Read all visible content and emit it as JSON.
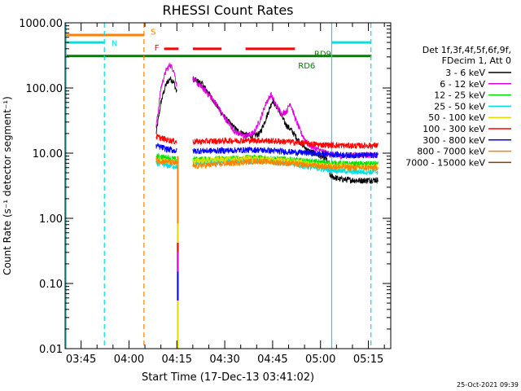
{
  "chart_data": {
    "type": "line",
    "title": "RHESSI Count Rates",
    "xlabel": "Start Time (17-Dec-13 03:41:02)",
    "ylabel": "Count Rate (s⁻¹ detector segment⁻¹)",
    "y_scale": "log",
    "ylim": [
      0.01,
      1000
    ],
    "y_ticks": [
      "0.01",
      "0.10",
      "1.00",
      "10.00",
      "100.00",
      "1000.00"
    ],
    "x_range_minutes_of_day": [
      220,
      322
    ],
    "x_ticks": [
      {
        "label": "03:45",
        "t": 225
      },
      {
        "label": "04:00",
        "t": 240
      },
      {
        "label": "04:15",
        "t": 255
      },
      {
        "label": "04:30",
        "t": 270
      },
      {
        "label": "04:45",
        "t": 285
      },
      {
        "label": "05:00",
        "t": 300
      },
      {
        "label": "05:15",
        "t": 315
      }
    ],
    "legend": {
      "placement": "right",
      "header": [
        "Det 1f,3f,4f,5f,6f,9f,",
        "FDecim 1, Att 0"
      ],
      "entries": [
        {
          "name": "3 - 6 keV",
          "color": "#000000"
        },
        {
          "name": "6 - 12 keV",
          "color": "#e000e0"
        },
        {
          "name": "12 - 25 keV",
          "color": "#00e000"
        },
        {
          "name": "25 - 50 keV",
          "color": "#00e0e0"
        },
        {
          "name": "50 - 100 keV",
          "color": "#e0e000"
        },
        {
          "name": "100 - 300 keV",
          "color": "#ff0000"
        },
        {
          "name": "300 - 800 keV",
          "color": "#0000ff"
        },
        {
          "name": "800 - 7000 keV",
          "color": "#ff8000"
        },
        {
          "name": "7000 - 15000 keV",
          "color": "#804000"
        }
      ]
    },
    "series": [
      {
        "name": "3 - 6 keV",
        "color": "#000000",
        "segments": [
          [
            [
              248.5,
              20
            ],
            [
              250,
              60
            ],
            [
              251.5,
              110
            ],
            [
              252.8,
              140
            ],
            [
              254,
              125
            ],
            [
              255,
              85
            ]
          ],
          [
            [
              260,
              140
            ],
            [
              263,
              115
            ],
            [
              266,
              70
            ],
            [
              270,
              35
            ],
            [
              274,
              22
            ],
            [
              278,
              18
            ],
            [
              281,
              20
            ],
            [
              283,
              35
            ],
            [
              285,
              65
            ],
            [
              287,
              45
            ],
            [
              289,
              28
            ],
            [
              291,
              22
            ],
            [
              293,
              16
            ],
            [
              296,
              11
            ],
            [
              298,
              10
            ],
            [
              300,
              9
            ],
            [
              302,
              8
            ],
            [
              303,
              4.5
            ],
            [
              306,
              4
            ],
            [
              312,
              3.8
            ],
            [
              318,
              3.9
            ]
          ]
        ]
      },
      {
        "name": "6 - 12 keV",
        "color": "#e000e0",
        "segments": [
          [
            [
              248.5,
              25
            ],
            [
              250,
              100
            ],
            [
              251.5,
              180
            ],
            [
              252.8,
              230
            ],
            [
              254,
              190
            ],
            [
              255,
              110
            ]
          ],
          [
            [
              260,
              140
            ],
            [
              262,
              110
            ],
            [
              264,
              90
            ],
            [
              267,
              60
            ],
            [
              270,
              35
            ],
            [
              273,
              22
            ],
            [
              276,
              18
            ],
            [
              279,
              20
            ],
            [
              281,
              32
            ],
            [
              283,
              60
            ],
            [
              284.5,
              80
            ],
            [
              286,
              55
            ],
            [
              288,
              40
            ],
            [
              289.5,
              45
            ],
            [
              290.5,
              60
            ],
            [
              292,
              35
            ],
            [
              294,
              20
            ],
            [
              296,
              14
            ],
            [
              298,
              12
            ],
            [
              300,
              11
            ],
            [
              302,
              10
            ],
            [
              306,
              9
            ],
            [
              312,
              9.5
            ],
            [
              318,
              9.2
            ]
          ]
        ]
      },
      {
        "name": "12 - 25 keV",
        "color": "#00e000",
        "segments": [
          [
            [
              248.5,
              9
            ],
            [
              252,
              8.5
            ],
            [
              255,
              8
            ]
          ],
          [
            [
              260,
              8
            ],
            [
              270,
              8.2
            ],
            [
              280,
              8.6
            ],
            [
              290,
              8
            ],
            [
              300,
              7.2
            ],
            [
              310,
              6.8
            ],
            [
              318,
              6.8
            ]
          ]
        ]
      },
      {
        "name": "25 - 50 keV",
        "color": "#00e0e0",
        "segments": [
          [
            [
              248.5,
              7
            ],
            [
              252,
              6.5
            ],
            [
              255,
              6.3
            ]
          ],
          [
            [
              260,
              7
            ],
            [
              270,
              7.4
            ],
            [
              280,
              7.8
            ],
            [
              290,
              7
            ],
            [
              300,
              5.8
            ],
            [
              310,
              5.2
            ],
            [
              318,
              5.2
            ]
          ]
        ]
      },
      {
        "name": "50 - 100 keV",
        "color": "#e0e000",
        "segments": [
          [
            [
              248.5,
              8
            ],
            [
              252,
              7.5
            ],
            [
              255,
              7.3
            ]
          ],
          [
            [
              260,
              7.6
            ],
            [
              270,
              8
            ],
            [
              280,
              8.2
            ],
            [
              290,
              7.6
            ],
            [
              300,
              6.6
            ],
            [
              310,
              6.2
            ],
            [
              318,
              6.2
            ]
          ]
        ]
      },
      {
        "name": "100 - 300 keV",
        "color": "#ff0000",
        "segments": [
          [
            [
              248.5,
              18
            ],
            [
              252,
              16
            ],
            [
              255,
              15
            ]
          ],
          [
            [
              260,
              15
            ],
            [
              270,
              15.5
            ],
            [
              280,
              15.8
            ],
            [
              290,
              15
            ],
            [
              300,
              13.5
            ],
            [
              310,
              13
            ],
            [
              318,
              13.2
            ]
          ]
        ]
      },
      {
        "name": "300 - 800 keV",
        "color": "#0000ff",
        "segments": [
          [
            [
              248.5,
              13
            ],
            [
              252,
              11.5
            ],
            [
              255,
              10.8
            ]
          ],
          [
            [
              260,
              10.8
            ],
            [
              270,
              11
            ],
            [
              280,
              11.3
            ],
            [
              290,
              10.5
            ],
            [
              300,
              9.8
            ],
            [
              310,
              9.3
            ],
            [
              318,
              9.4
            ]
          ]
        ]
      },
      {
        "name": "800 - 7000 keV",
        "color": "#ff8000",
        "segments": [
          [
            [
              248.5,
              7.8
            ],
            [
              252,
              7.4
            ],
            [
              255,
              7
            ]
          ],
          [
            [
              260,
              6.3
            ],
            [
              270,
              6.9
            ],
            [
              280,
              7.6
            ],
            [
              290,
              7
            ],
            [
              300,
              6.3
            ],
            [
              310,
              6
            ],
            [
              318,
              6
            ]
          ]
        ]
      },
      {
        "name": "7000 - 15000 keV",
        "color": "#804000",
        "segments": []
      }
    ],
    "drop_at_t": 255.3,
    "vertical_lines": [
      {
        "t": 220.3,
        "color": "#00e0e0",
        "style": "solid"
      },
      {
        "t": 232.3,
        "color": "#00e0e0",
        "style": "dashed"
      },
      {
        "t": 244.7,
        "color": "#ff8000",
        "style": "dashed"
      },
      {
        "t": 303.5,
        "color": "#00e0e0",
        "style": "solid"
      },
      {
        "t": 315.8,
        "color": "#00e0e0",
        "style": "dashed"
      }
    ],
    "flag_bars": [
      {
        "label": "N",
        "color": "#00e0e0",
        "value": 500,
        "ranges": [
          [
            220,
            232.3
          ],
          [
            303.5,
            315.8
          ]
        ],
        "label_at_t": 234.5
      },
      {
        "label": "S",
        "color": "#ff8000",
        "value": 650,
        "ranges": [
          [
            220,
            244.7
          ]
        ],
        "label_at_t": 246.8
      },
      {
        "label": "F",
        "color": "#ff0000",
        "value": 400,
        "ranges": [
          [
            251,
            255.5
          ],
          [
            260,
            269
          ],
          [
            276.5,
            292
          ]
        ],
        "label_at_t": 248
      },
      {
        "label": "RD9",
        "color": "#008000",
        "value": 310,
        "ranges": [
          [
            220,
            316
          ]
        ],
        "label_at_t": 298
      },
      {
        "label": "RD6",
        "color": "#008000",
        "value": 310,
        "ranges": [],
        "label_at_t": 293
      }
    ],
    "label_values": {
      "N": 495,
      "S": 740,
      "F": 420,
      "RD9": 340,
      "RD6": 225
    },
    "grid": false
  },
  "footer": {
    "timestamp": "25-Oct-2021 09:39"
  }
}
